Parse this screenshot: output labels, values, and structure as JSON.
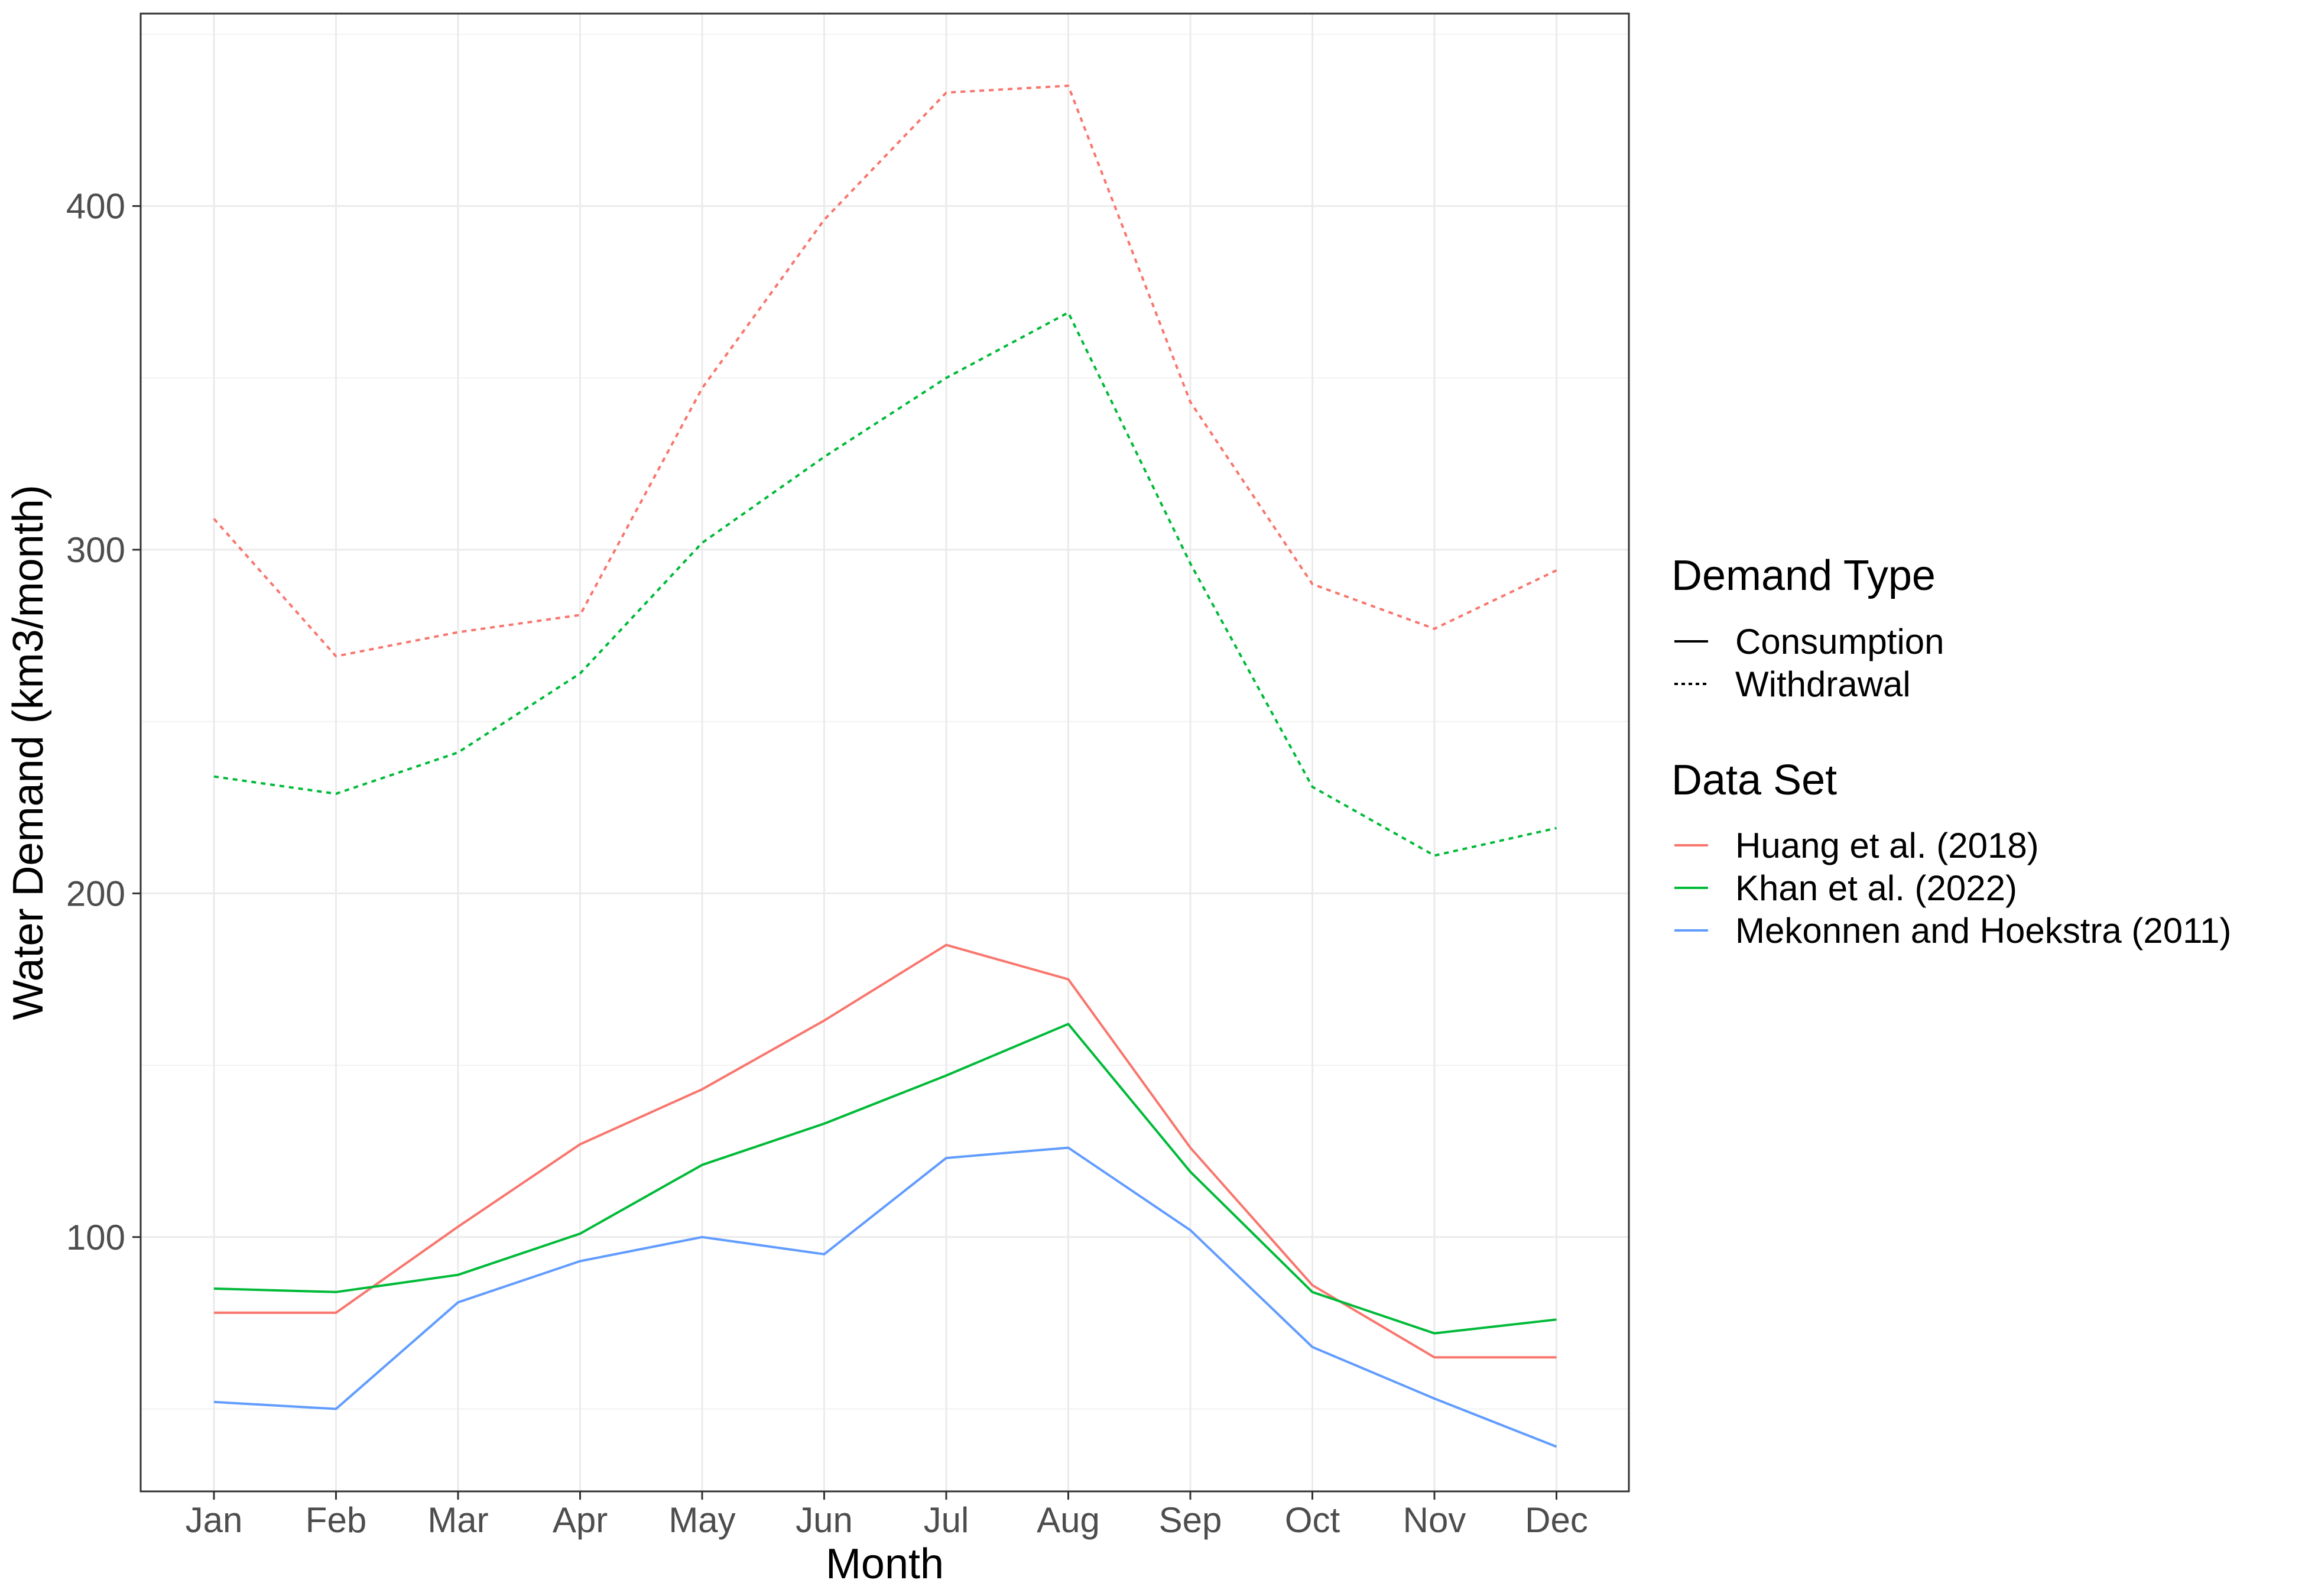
{
  "chart_data": {
    "type": "line",
    "title": "",
    "xlabel": "Month",
    "ylabel": "Water Demand (km3/month)",
    "categories": [
      "Jan",
      "Feb",
      "Mar",
      "Apr",
      "May",
      "Jun",
      "Jul",
      "Aug",
      "Sep",
      "Oct",
      "Nov",
      "Dec"
    ],
    "ylim": [
      26,
      456
    ],
    "yticks": [
      100,
      200,
      300,
      400
    ],
    "grid": true,
    "legend_position": "right",
    "legends": [
      {
        "title": "Demand Type",
        "entries": [
          {
            "label": "Consumption",
            "linetype": "solid"
          },
          {
            "label": "Withdrawal",
            "linetype": "dotted"
          }
        ]
      },
      {
        "title": "Data Set",
        "entries": [
          {
            "label": "Huang et al. (2018)",
            "color": "#F8766D"
          },
          {
            "label": "Khan et al. (2022)",
            "color": "#00BA38"
          },
          {
            "label": "Mekonnen and Hoekstra (2011)",
            "color": "#619CFF"
          }
        ]
      }
    ],
    "series": [
      {
        "dataset": "Huang et al. (2018)",
        "demand_type": "Withdrawal",
        "color": "#F8766D",
        "linetype": "dotted",
        "values": [
          309,
          269,
          276,
          281,
          347,
          396,
          433,
          435,
          343,
          290,
          277,
          294
        ]
      },
      {
        "dataset": "Khan et al. (2022)",
        "demand_type": "Withdrawal",
        "color": "#00BA38",
        "linetype": "dotted",
        "values": [
          234,
          229,
          241,
          264,
          302,
          327,
          350,
          369,
          296,
          231,
          211,
          219
        ]
      },
      {
        "dataset": "Huang et al. (2018)",
        "demand_type": "Consumption",
        "color": "#F8766D",
        "linetype": "solid",
        "values": [
          78,
          78,
          103,
          127,
          143,
          163,
          185,
          175,
          126,
          86,
          65,
          65
        ]
      },
      {
        "dataset": "Khan et al. (2022)",
        "demand_type": "Consumption",
        "color": "#00BA38",
        "linetype": "solid",
        "values": [
          85,
          84,
          89,
          101,
          121,
          133,
          147,
          162,
          119,
          84,
          72,
          76
        ]
      },
      {
        "dataset": "Mekonnen and Hoekstra (2011)",
        "demand_type": "Consumption",
        "color": "#619CFF",
        "linetype": "solid",
        "values": [
          52,
          50,
          81,
          93,
          100,
          95,
          123,
          126,
          102,
          68,
          53,
          39
        ]
      }
    ]
  }
}
